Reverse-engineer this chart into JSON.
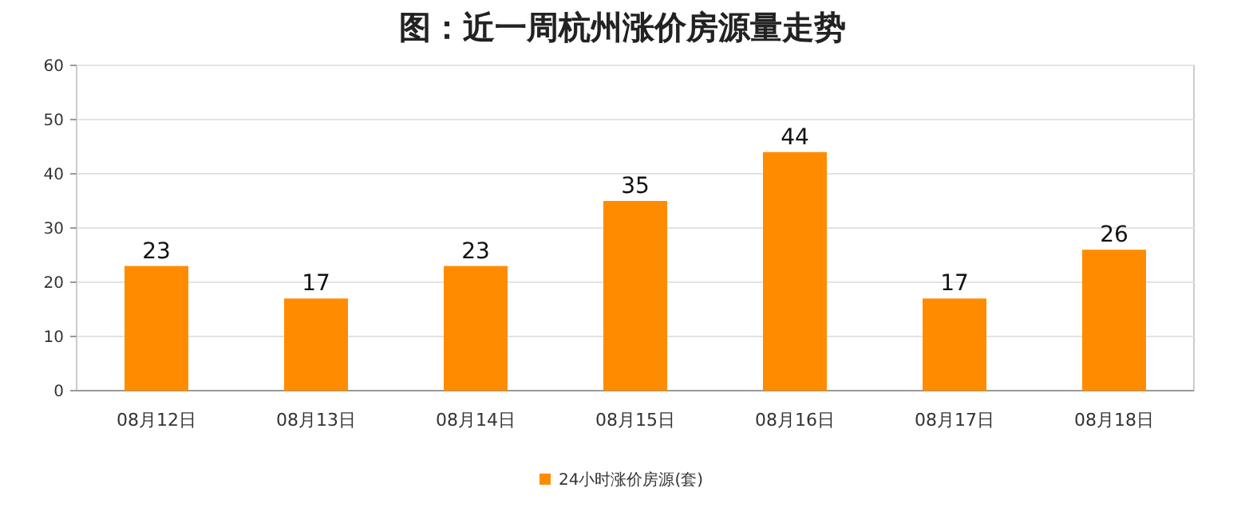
{
  "chart_data": {
    "type": "bar",
    "title": "图：近一周杭州涨价房源量走势",
    "categories": [
      "08月12日",
      "08月13日",
      "08月14日",
      "08月15日",
      "08月16日",
      "08月17日",
      "08月18日"
    ],
    "series": [
      {
        "name": "24小时涨价房源(套)",
        "color": "#ff8c00",
        "values": [
          23,
          17,
          23,
          35,
          44,
          17,
          26
        ]
      }
    ],
    "ylim": [
      0,
      60
    ],
    "yticks": [
      0,
      10,
      20,
      30,
      40,
      50,
      60
    ],
    "grid": "y",
    "data_labels": true,
    "legend": "bottom"
  }
}
